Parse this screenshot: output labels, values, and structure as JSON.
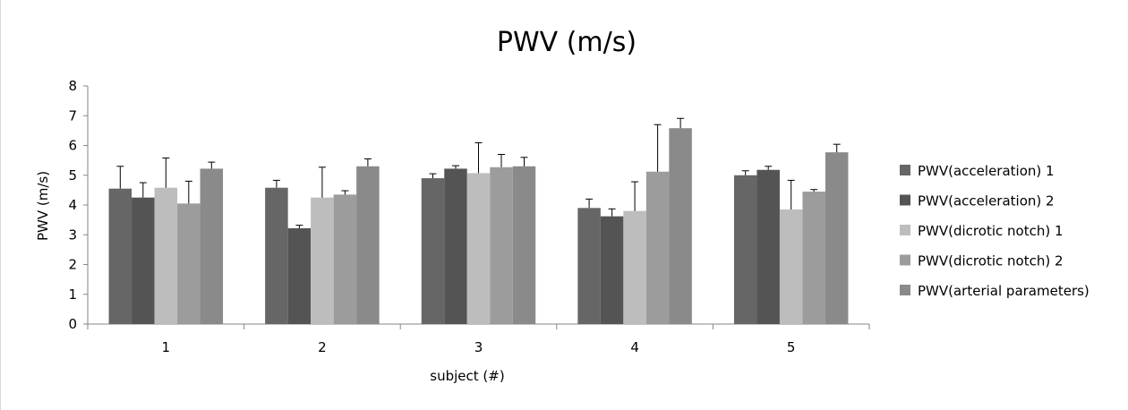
{
  "chart_data": {
    "type": "bar",
    "title": "PWV (m/s)",
    "xlabel": "subject (#)",
    "ylabel": "PWV (m/s)",
    "ylim": [
      0,
      8
    ],
    "yticks": [
      "0",
      "1",
      "2",
      "3",
      "4",
      "5",
      "6",
      "7",
      "8"
    ],
    "categories": [
      "1",
      "2",
      "3",
      "4",
      "5"
    ],
    "series": [
      {
        "name": "PWV(acceleration) 1",
        "color": "#666666",
        "values": [
          4.55,
          4.58,
          4.9,
          3.9,
          5.0
        ],
        "errors": [
          0.75,
          0.25,
          0.15,
          0.3,
          0.15
        ]
      },
      {
        "name": "PWV(acceleration) 2",
        "color": "#545454",
        "values": [
          4.25,
          3.22,
          5.22,
          3.62,
          5.18
        ],
        "errors": [
          0.5,
          0.1,
          0.1,
          0.25,
          0.12
        ]
      },
      {
        "name": "PWV(dicrotic notch) 1",
        "color": "#bdbdbd",
        "values": [
          4.58,
          4.25,
          5.07,
          3.8,
          3.85
        ],
        "errors": [
          1.0,
          1.02,
          1.02,
          0.98,
          0.98
        ]
      },
      {
        "name": "PWV(dicrotic notch) 2",
        "color": "#9c9c9c",
        "values": [
          4.05,
          4.35,
          5.27,
          5.12,
          4.45
        ],
        "errors": [
          0.75,
          0.13,
          0.43,
          1.58,
          0.07
        ]
      },
      {
        "name": "PWV(arterial parameters)",
        "color": "#8a8a8a",
        "values": [
          5.22,
          5.3,
          5.3,
          6.58,
          5.77
        ],
        "errors": [
          0.22,
          0.25,
          0.3,
          0.33,
          0.27
        ]
      }
    ],
    "legend_position": "right",
    "grid": false,
    "error_bars": true
  }
}
